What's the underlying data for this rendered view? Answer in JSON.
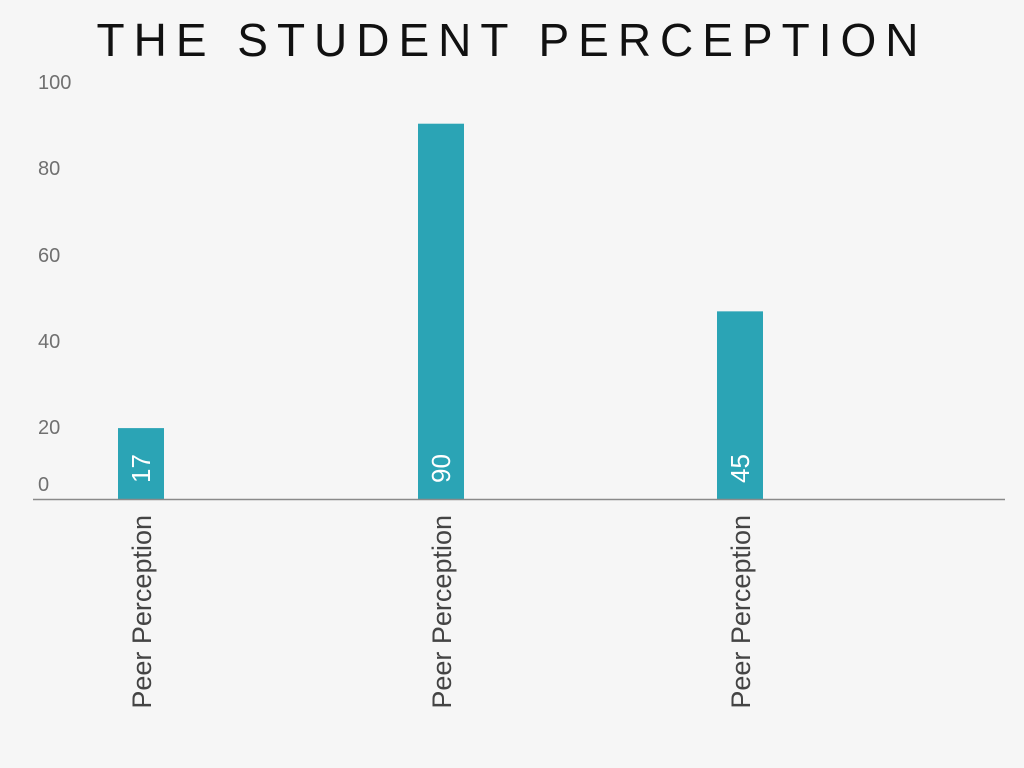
{
  "slide": {
    "title": "THE STUDENT PERCEPTION"
  },
  "chart_data": {
    "type": "bar",
    "categories": [
      "Peer Perception",
      "Peer Perception",
      "Peer Perception"
    ],
    "values": [
      17,
      90,
      45
    ],
    "data_labels": [
      "17",
      "90",
      "45"
    ],
    "ytick_labels": [
      "0",
      "20",
      "40",
      "60",
      "80",
      "100"
    ],
    "yticks": [
      0,
      20,
      40,
      60,
      80,
      100
    ],
    "ylim": [
      0,
      100
    ],
    "xlabel": "",
    "ylabel": "",
    "grid": false,
    "legend": "none",
    "bar_color": "#2ba4b5",
    "axis_color": "#8a8a8a"
  }
}
